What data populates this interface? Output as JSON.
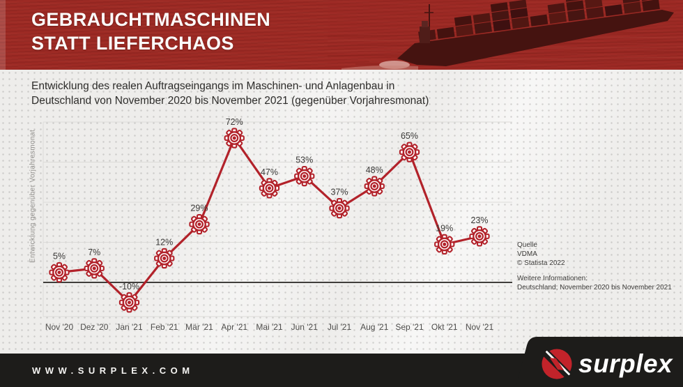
{
  "header": {
    "title_line1": "GEBRAUCHTMASCHINEN",
    "title_line2": "STATT LIEFERCHAOS"
  },
  "subtitle": {
    "line1": "Entwicklung des realen Auftragseingangs im Maschinen- und Anlagenbau in",
    "line2": "Deutschland von November 2020 bis November 2021 (gegenüber Vorjahresmonat)"
  },
  "chart_data": {
    "type": "line",
    "categories": [
      "Nov '20",
      "Dez '20",
      "Jan '21",
      "Feb '21",
      "Mär '21",
      "Apr '21",
      "Mai '21",
      "Jun '21",
      "Jul '21",
      "Aug '21",
      "Sep '21",
      "Okt '21",
      "Nov '21"
    ],
    "values": [
      5,
      7,
      -10,
      12,
      29,
      72,
      47,
      53,
      37,
      48,
      65,
      19,
      23
    ],
    "value_labels": [
      "5%",
      "7%",
      "-10%",
      "12%",
      "29%",
      "72%",
      "47%",
      "53%",
      "37%",
      "48%",
      "65%",
      "19%",
      "23%"
    ],
    "unit": "%",
    "title": "",
    "xlabel": "",
    "ylabel": "Entwicklung gegenüber Vorjahresmonat",
    "ylim": [
      -17,
      82
    ],
    "gridlines_pct": [
      80,
      60,
      40,
      20
    ],
    "zero_line": true,
    "grid": true,
    "legend": "none",
    "marker": "gear-icon",
    "line_color": "#b2222a"
  },
  "source": {
    "label": "Quelle",
    "name": "VDMA",
    "copyright": "© Statista 2022",
    "info_label": "Weitere Informationen:",
    "info_text": "Deutschland; November 2020 bis November 2021"
  },
  "footer": {
    "url": "WWW.SURPLEX.COM",
    "brand": "surplex"
  },
  "colors": {
    "header_red": "#9d2a24",
    "accent": "#b2222a",
    "footer_dark": "#1d1c1a",
    "logo_red": "#c2232a",
    "background": "#eeedeb"
  }
}
